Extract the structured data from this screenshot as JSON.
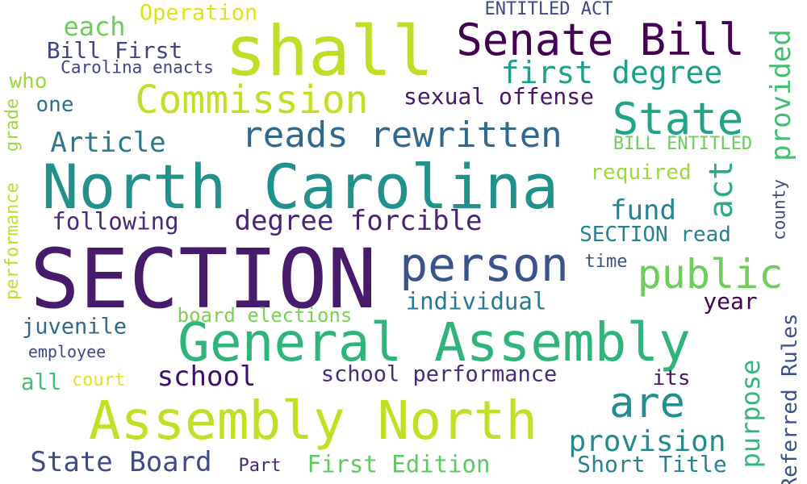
{
  "colors": {
    "background": "#ffffff",
    "palette": [
      "#440154",
      "#482475",
      "#414487",
      "#355f8d",
      "#2a788e",
      "#21918c",
      "#22a884",
      "#44bf70",
      "#7ad151",
      "#bddf26"
    ]
  },
  "words": [
    {
      "text": "SECTION",
      "color": "#481a6c"
    },
    {
      "text": "North Carolina",
      "color": "#21918c"
    },
    {
      "text": "General Assembly",
      "color": "#2fb47c"
    },
    {
      "text": "Assembly North",
      "color": "#c2df23"
    },
    {
      "text": "shall",
      "color": "#bddf26"
    },
    {
      "text": "Senate Bill",
      "color": "#440154"
    },
    {
      "text": "person",
      "color": "#3b528b"
    },
    {
      "text": "reads rewritten",
      "color": "#31688e"
    },
    {
      "text": "Commission",
      "color": "#c2df23"
    },
    {
      "text": "State",
      "color": "#20a386"
    },
    {
      "text": "public",
      "color": "#6ccd5a"
    },
    {
      "text": "are",
      "color": "#218f8d"
    },
    {
      "text": "first degree",
      "color": "#1f9e89"
    },
    {
      "text": "degree forcible",
      "color": "#482475"
    },
    {
      "text": "provision",
      "color": "#228c8d"
    },
    {
      "text": "State Board",
      "color": "#3e4a89"
    },
    {
      "text": "Article",
      "color": "#2a788e"
    },
    {
      "text": "school",
      "color": "#3b0f70"
    },
    {
      "text": "fund",
      "color": "#26828e"
    },
    {
      "text": "individual",
      "color": "#2a788e"
    },
    {
      "text": "school performance",
      "color": "#472c7a"
    },
    {
      "text": "juvenile",
      "color": "#31688e"
    },
    {
      "text": "sexual offense",
      "color": "#481668"
    },
    {
      "text": "following",
      "color": "#482878"
    },
    {
      "text": "each",
      "color": "#6ccd5a"
    },
    {
      "text": "Bill First",
      "color": "#414487"
    },
    {
      "text": "Operation",
      "color": "#dde318"
    },
    {
      "text": "ENTITLED ACT",
      "color": "#3e4989"
    },
    {
      "text": "Carolina enacts",
      "color": "#414487"
    },
    {
      "text": "who",
      "color": "#9bd93c"
    },
    {
      "text": "one",
      "color": "#2e6e8e"
    },
    {
      "text": "BILL ENTITLED",
      "color": "#6ccd5a"
    },
    {
      "text": "required",
      "color": "#9bd93c"
    },
    {
      "text": "SECTION read",
      "color": "#26828e"
    },
    {
      "text": "time",
      "color": "#3b528b"
    },
    {
      "text": "year",
      "color": "#440154"
    },
    {
      "text": "board elections",
      "color": "#7ad151"
    },
    {
      "text": "employee",
      "color": "#3e4a89"
    },
    {
      "text": "all",
      "color": "#44bf70"
    },
    {
      "text": "court",
      "color": "#dde318"
    },
    {
      "text": "its",
      "color": "#481668"
    },
    {
      "text": "Part",
      "color": "#482475"
    },
    {
      "text": "First Edition",
      "color": "#5ec962"
    },
    {
      "text": "Short Title",
      "color": "#26828e"
    },
    {
      "text": "provided",
      "color": "#44bf70"
    },
    {
      "text": "act",
      "color": "#29af7f"
    },
    {
      "text": "purpose",
      "color": "#35b779"
    },
    {
      "text": "Referred Rules",
      "color": "#3b528b"
    },
    {
      "text": "county",
      "color": "#3e4989"
    },
    {
      "text": "performance",
      "color": "#bddf26"
    },
    {
      "text": "grade",
      "color": "#9bd93c"
    }
  ]
}
